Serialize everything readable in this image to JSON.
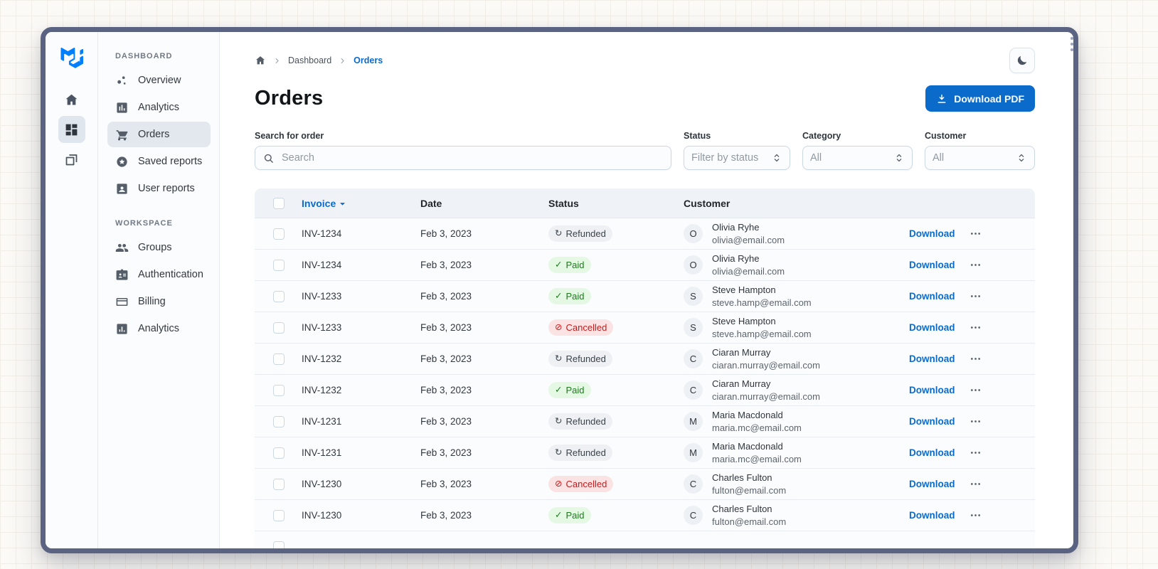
{
  "rail": {
    "items": [
      {
        "icon": "home",
        "selected": false
      },
      {
        "icon": "dashboard",
        "selected": true
      },
      {
        "icon": "layers",
        "selected": false
      }
    ]
  },
  "sidebar": {
    "sections": [
      {
        "label": "DASHBOARD",
        "items": [
          {
            "icon": "scatter-chart",
            "label": "Overview",
            "selected": false
          },
          {
            "icon": "bar-chart",
            "label": "Analytics",
            "selected": false
          },
          {
            "icon": "cart",
            "label": "Orders",
            "selected": true
          },
          {
            "icon": "star-circle",
            "label": "Saved reports",
            "selected": false
          },
          {
            "icon": "person-card",
            "label": "User reports",
            "selected": false
          }
        ]
      },
      {
        "label": "WORKSPACE",
        "items": [
          {
            "icon": "groups",
            "label": "Groups",
            "selected": false
          },
          {
            "icon": "badge",
            "label": "Authentication",
            "selected": false
          },
          {
            "icon": "credit-card",
            "label": "Billing",
            "selected": false
          },
          {
            "icon": "chart-square",
            "label": "Analytics",
            "selected": false
          }
        ]
      }
    ]
  },
  "breadcrumb": {
    "items": [
      {
        "label": "Dashboard",
        "current": false
      },
      {
        "label": "Orders",
        "current": true
      }
    ]
  },
  "page": {
    "title": "Orders",
    "download_button": "Download PDF"
  },
  "filters": {
    "search": {
      "label": "Search for order",
      "placeholder": "Search"
    },
    "selects": [
      {
        "label": "Status",
        "value": "Filter by status"
      },
      {
        "label": "Category",
        "value": "All"
      },
      {
        "label": "Customer",
        "value": "All"
      }
    ]
  },
  "table": {
    "headers": {
      "invoice": "Invoice",
      "date": "Date",
      "status": "Status",
      "customer": "Customer"
    },
    "row_action_label": "Download",
    "status_icons": {
      "success": "check-icon",
      "neutral": "refresh-icon",
      "danger": "block-icon"
    },
    "rows": [
      {
        "invoice": "INV-1234",
        "date": "Feb 3, 2023",
        "status": "Refunded",
        "status_kind": "neutral",
        "initial": "O",
        "name": "Olivia Ryhe",
        "email": "olivia@email.com"
      },
      {
        "invoice": "INV-1234",
        "date": "Feb 3, 2023",
        "status": "Paid",
        "status_kind": "success",
        "initial": "O",
        "name": "Olivia Ryhe",
        "email": "olivia@email.com"
      },
      {
        "invoice": "INV-1233",
        "date": "Feb 3, 2023",
        "status": "Paid",
        "status_kind": "success",
        "initial": "S",
        "name": "Steve Hampton",
        "email": "steve.hamp@email.com"
      },
      {
        "invoice": "INV-1233",
        "date": "Feb 3, 2023",
        "status": "Cancelled",
        "status_kind": "danger",
        "initial": "S",
        "name": "Steve Hampton",
        "email": "steve.hamp@email.com"
      },
      {
        "invoice": "INV-1232",
        "date": "Feb 3, 2023",
        "status": "Refunded",
        "status_kind": "neutral",
        "initial": "C",
        "name": "Ciaran Murray",
        "email": "ciaran.murray@email.com"
      },
      {
        "invoice": "INV-1232",
        "date": "Feb 3, 2023",
        "status": "Paid",
        "status_kind": "success",
        "initial": "C",
        "name": "Ciaran Murray",
        "email": "ciaran.murray@email.com"
      },
      {
        "invoice": "INV-1231",
        "date": "Feb 3, 2023",
        "status": "Refunded",
        "status_kind": "neutral",
        "initial": "M",
        "name": "Maria Macdonald",
        "email": "maria.mc@email.com"
      },
      {
        "invoice": "INV-1231",
        "date": "Feb 3, 2023",
        "status": "Refunded",
        "status_kind": "neutral",
        "initial": "M",
        "name": "Maria Macdonald",
        "email": "maria.mc@email.com"
      },
      {
        "invoice": "INV-1230",
        "date": "Feb 3, 2023",
        "status": "Cancelled",
        "status_kind": "danger",
        "initial": "C",
        "name": "Charles Fulton",
        "email": "fulton@email.com"
      },
      {
        "invoice": "INV-1230",
        "date": "Feb 3, 2023",
        "status": "Paid",
        "status_kind": "success",
        "initial": "C",
        "name": "Charles Fulton",
        "email": "fulton@email.com"
      }
    ]
  },
  "colors": {
    "accent": "#0b6bcb",
    "frame": "#5a6482",
    "paid_bg": "#e4f8e4",
    "paid_text": "#1f7a1f",
    "refunded_bg": "#eef0f4",
    "refunded_text": "#3b434b",
    "cancelled_bg": "#fbe3e3",
    "cancelled_text": "#c41c1c"
  }
}
